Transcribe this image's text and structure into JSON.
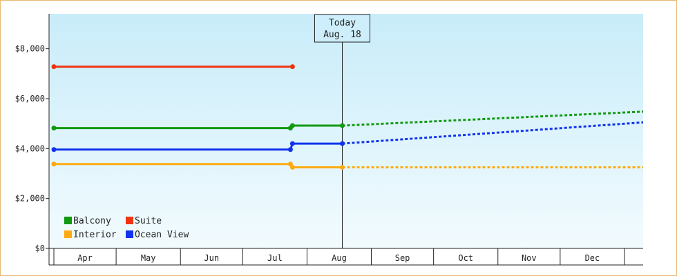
{
  "chart_data": {
    "type": "line",
    "title": "",
    "xlabel": "",
    "ylabel": "",
    "categories": [
      "Apr",
      "May",
      "Jun",
      "Jul",
      "Aug",
      "Sep",
      "Oct",
      "Nov",
      "Dec"
    ],
    "y_ticks": [
      "$0",
      "$2,000",
      "$4,000",
      "$6,000",
      "$8,000"
    ],
    "y_tick_values": [
      0,
      2000,
      4000,
      6000,
      8000
    ],
    "ylim": [
      0,
      9400
    ],
    "x_range_days": [
      0,
      284
    ],
    "today": {
      "line1": "Today",
      "line2": "Aug. 18",
      "day": 139
    },
    "grid": false,
    "legend_position": "bottom-left",
    "series": [
      {
        "name": "Balcony",
        "color": "#119911",
        "points": [
          [
            0,
            4820
          ],
          [
            114,
            4820
          ],
          [
            115,
            4920
          ],
          [
            139,
            4920
          ]
        ],
        "forecast": [
          [
            139,
            4920
          ],
          [
            284,
            5480
          ]
        ]
      },
      {
        "name": "Suite",
        "color": "#ee3311",
        "points": [
          [
            0,
            7280
          ],
          [
            115,
            7280
          ]
        ],
        "forecast": []
      },
      {
        "name": "Interior",
        "color": "#ffaa11",
        "points": [
          [
            0,
            3380
          ],
          [
            114,
            3380
          ],
          [
            115,
            3250
          ],
          [
            139,
            3250
          ]
        ],
        "forecast": [
          [
            139,
            3250
          ],
          [
            284,
            3250
          ]
        ]
      },
      {
        "name": "Ocean View",
        "color": "#1133ee",
        "points": [
          [
            0,
            3960
          ],
          [
            114,
            3960
          ],
          [
            115,
            4200
          ],
          [
            139,
            4200
          ]
        ],
        "forecast": [
          [
            139,
            4200
          ],
          [
            284,
            5050
          ]
        ]
      }
    ]
  }
}
